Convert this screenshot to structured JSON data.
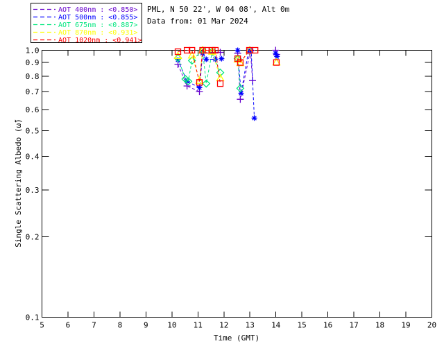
{
  "header": {
    "site_line": "PML, N 50 22', W 04 08', Alt 0m",
    "date_line": "Data from: 01 Mar 2024"
  },
  "legend": {
    "position": "top-left",
    "entries": [
      {
        "label": "AOT  400nm : <0.850>",
        "color": "#6600CC"
      },
      {
        "label": "AOT  500nm : <0.855>",
        "color": "#0000FF"
      },
      {
        "label": "AOT  675nm : <0.887>",
        "color": "#00E67E"
      },
      {
        "label": "AOT  870nm : <0.931>",
        "color": "#FFFF00"
      },
      {
        "label": "AOT 1020nm : <0.941>",
        "color": "#FF0000"
      }
    ]
  },
  "chart_data": {
    "type": "line",
    "title": "",
    "xlabel": "Time (GMT)",
    "ylabel": "Single Scattering Albedo (ω̃)",
    "xlim": [
      5,
      20
    ],
    "ylim": [
      0.1,
      1.0
    ],
    "yscale": "log",
    "grid": false,
    "line_style": "dashed",
    "frame_color": "#000000",
    "xticks": [
      5,
      6,
      7,
      8,
      9,
      10,
      11,
      12,
      13,
      14,
      15,
      16,
      17,
      18,
      19,
      20
    ],
    "xtick_labels": [
      "5",
      "6",
      "7",
      "8",
      "9",
      "10",
      "11",
      "12",
      "13",
      "14",
      "15",
      "16",
      "17",
      "18",
      "19",
      "20"
    ],
    "yticks": [
      1.0,
      0.9,
      0.8,
      0.7,
      0.6,
      0.5,
      0.4,
      0.3,
      0.2,
      0.1
    ],
    "ytick_labels": [
      "1.0",
      "0.9",
      "0.8",
      "0.7",
      "0.6",
      "0.5",
      "0.4",
      "0.3",
      "0.2",
      "0.1"
    ],
    "series": [
      {
        "name": "AOT 400nm",
        "mean": "<0.850>",
        "color": "#6600CC",
        "marker": "plus",
        "points": [
          [
            10.23,
            0.885
          ],
          [
            10.58,
            0.735
          ],
          [
            11.06,
            0.7
          ],
          [
            11.18,
            0.98
          ],
          [
            11.55,
            0.982
          ],
          [
            11.86,
            0.982
          ],
          [
            12.53,
            0.975
          ],
          [
            12.63,
            0.655
          ],
          [
            13.02,
            1.0
          ],
          [
            13.1,
            0.77
          ],
          [
            13.99,
            1.0
          ],
          [
            14.03,
            0.965
          ]
        ]
      },
      {
        "name": "AOT 500nm",
        "mean": "<0.855>",
        "color": "#0000FF",
        "marker": "asterisk",
        "points": [
          [
            10.23,
            0.92
          ],
          [
            10.58,
            0.765
          ],
          [
            11.06,
            0.725
          ],
          [
            11.18,
            0.975
          ],
          [
            11.32,
            0.925
          ],
          [
            11.67,
            0.925
          ],
          [
            11.91,
            0.93
          ],
          [
            12.53,
            1.0
          ],
          [
            12.66,
            0.69
          ],
          [
            12.95,
            1.0
          ],
          [
            13.05,
            0.995
          ],
          [
            13.17,
            0.557
          ],
          [
            13.99,
            0.975
          ],
          [
            14.04,
            0.948
          ]
        ]
      },
      {
        "name": "AOT 675nm",
        "mean": "<0.887>",
        "color": "#00E67E",
        "marker": "diamond",
        "points": [
          [
            10.23,
            0.935
          ],
          [
            10.52,
            0.78
          ],
          [
            10.63,
            0.765
          ],
          [
            10.77,
            0.915
          ],
          [
            11.18,
            1.0
          ],
          [
            11.32,
            0.75
          ],
          [
            11.55,
            0.99
          ],
          [
            11.86,
            0.825
          ],
          [
            12.53,
            0.93
          ],
          [
            12.63,
            0.72
          ]
        ]
      },
      {
        "name": "AOT 870nm",
        "mean": "<0.931>",
        "color": "#FFFF00",
        "marker": "triangle-up",
        "points": [
          [
            10.23,
            0.953
          ],
          [
            10.77,
            0.958
          ],
          [
            11.06,
            0.77
          ],
          [
            11.18,
            1.0
          ],
          [
            11.55,
            0.99
          ],
          [
            11.86,
            0.787
          ],
          [
            12.53,
            0.925
          ],
          [
            12.63,
            0.897
          ],
          [
            12.98,
            1.0
          ],
          [
            14.02,
            0.903
          ]
        ]
      },
      {
        "name": "AOT 1020nm",
        "mean": "<0.941>",
        "color": "#FF0000",
        "marker": "square",
        "points": [
          [
            10.23,
            0.988
          ],
          [
            10.58,
            1.0
          ],
          [
            10.77,
            1.0
          ],
          [
            11.06,
            0.758
          ],
          [
            11.18,
            1.0
          ],
          [
            11.32,
            1.0
          ],
          [
            11.55,
            1.0
          ],
          [
            11.67,
            1.0
          ],
          [
            11.86,
            0.75
          ],
          [
            12.53,
            0.93
          ],
          [
            12.63,
            0.9
          ],
          [
            12.98,
            1.0
          ],
          [
            13.2,
            1.0
          ],
          [
            14.02,
            0.9
          ]
        ]
      }
    ]
  }
}
